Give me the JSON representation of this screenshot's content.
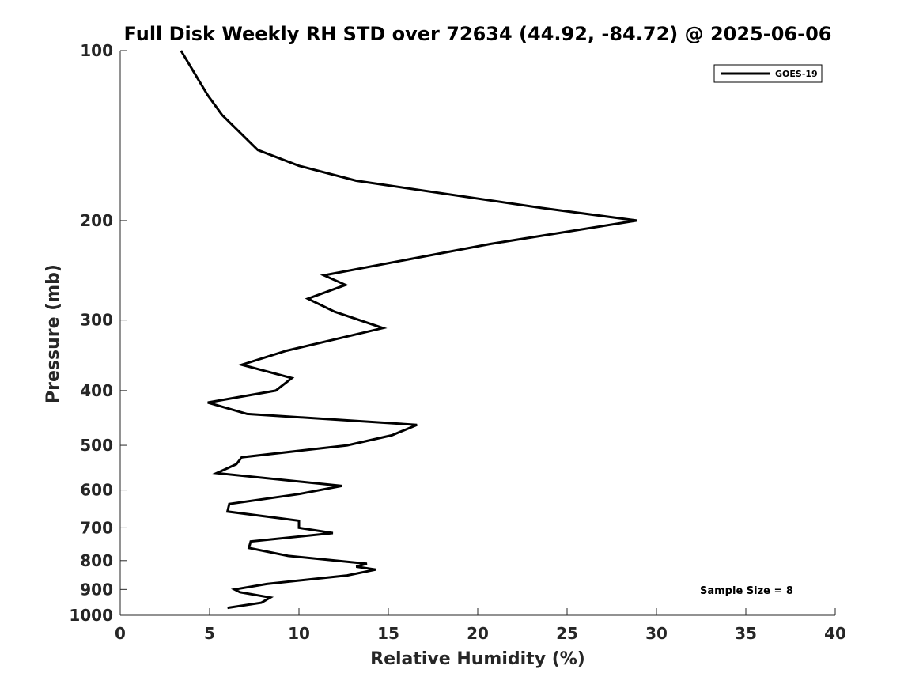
{
  "chart_data": {
    "type": "line",
    "title": "Full Disk Weekly RH STD over 72634 (44.92, -84.72) @ 2025-06-06",
    "xlabel": "Relative Humidity (%)",
    "ylabel": "Pressure (mb)",
    "xlim": [
      0,
      40
    ],
    "ylim": [
      100,
      1000
    ],
    "yscale": "log",
    "xticks": [
      "0",
      "5",
      "10",
      "15",
      "20",
      "25",
      "30",
      "35",
      "40"
    ],
    "yticks": [
      "100",
      "200",
      "300",
      "400",
      "500",
      "600",
      "700",
      "800",
      "900",
      "1000"
    ],
    "legend": {
      "position": "top-right",
      "entries": [
        "GOES-19"
      ]
    },
    "annotation": "Sample Size = 8",
    "grid": false,
    "series": [
      {
        "name": "GOES-19",
        "color": "#000000",
        "points": [
          [
            3.4,
            100
          ],
          [
            4.9,
            120
          ],
          [
            5.7,
            130
          ],
          [
            7.7,
            150
          ],
          [
            10.0,
            160
          ],
          [
            13.2,
            170
          ],
          [
            23.6,
            190
          ],
          [
            28.9,
            200
          ],
          [
            20.7,
            220
          ],
          [
            11.4,
            250
          ],
          [
            12.6,
            260
          ],
          [
            10.5,
            275
          ],
          [
            12.0,
            290
          ],
          [
            14.7,
            310
          ],
          [
            9.3,
            340
          ],
          [
            6.8,
            360
          ],
          [
            9.6,
            380
          ],
          [
            8.7,
            400
          ],
          [
            4.9,
            420
          ],
          [
            7.1,
            440
          ],
          [
            16.6,
            460
          ],
          [
            15.2,
            480
          ],
          [
            12.7,
            500
          ],
          [
            6.8,
            525
          ],
          [
            6.5,
            540
          ],
          [
            5.4,
            560
          ],
          [
            12.4,
            590
          ],
          [
            10.0,
            610
          ],
          [
            6.1,
            635
          ],
          [
            6.0,
            655
          ],
          [
            10.0,
            680
          ],
          [
            10.0,
            700
          ],
          [
            11.9,
            715
          ],
          [
            7.3,
            740
          ],
          [
            7.2,
            760
          ],
          [
            9.4,
            785
          ],
          [
            13.8,
            810
          ],
          [
            13.2,
            820
          ],
          [
            14.3,
            830
          ],
          [
            12.7,
            850
          ],
          [
            8.2,
            880
          ],
          [
            6.4,
            900
          ],
          [
            6.7,
            910
          ],
          [
            8.4,
            930
          ],
          [
            7.9,
            950
          ],
          [
            6.0,
            970
          ]
        ]
      }
    ]
  }
}
